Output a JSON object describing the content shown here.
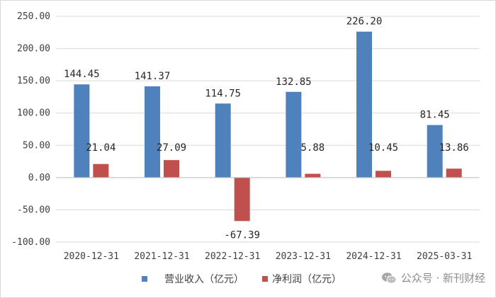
{
  "chart_data": {
    "type": "bar",
    "categories": [
      "2020-12-31",
      "2021-12-31",
      "2022-12-31",
      "2023-12-31",
      "2024-12-31",
      "2025-03-31"
    ],
    "series": [
      {
        "name": "营业收入（亿元）",
        "color": "#4f81bd",
        "values": [
          144.45,
          141.37,
          114.75,
          132.85,
          226.2,
          81.45
        ],
        "labels": [
          "144.45",
          "141.37",
          "114.75",
          "132.85",
          "226.20",
          "81.45"
        ]
      },
      {
        "name": "净利润（亿元）",
        "color": "#c0504d",
        "values": [
          21.04,
          27.09,
          -67.39,
          5.88,
          10.45,
          13.86
        ],
        "labels": [
          "21.04",
          "27.09",
          "-67.39",
          "5.88",
          "10.45",
          "13.86"
        ]
      }
    ],
    "ylim": [
      -100,
      250
    ],
    "yticks": [
      -100,
      -50,
      0,
      50,
      100,
      150,
      200,
      250
    ],
    "ytick_labels": [
      "-100.00",
      "-50.00",
      "0.00",
      "50.00",
      "100.00",
      "150.00",
      "200.00",
      "250.00"
    ],
    "grid": true,
    "legend_position": "bottom"
  },
  "watermark": {
    "text": "公众号 · 新刊财经",
    "icon": "wechat-icon"
  }
}
